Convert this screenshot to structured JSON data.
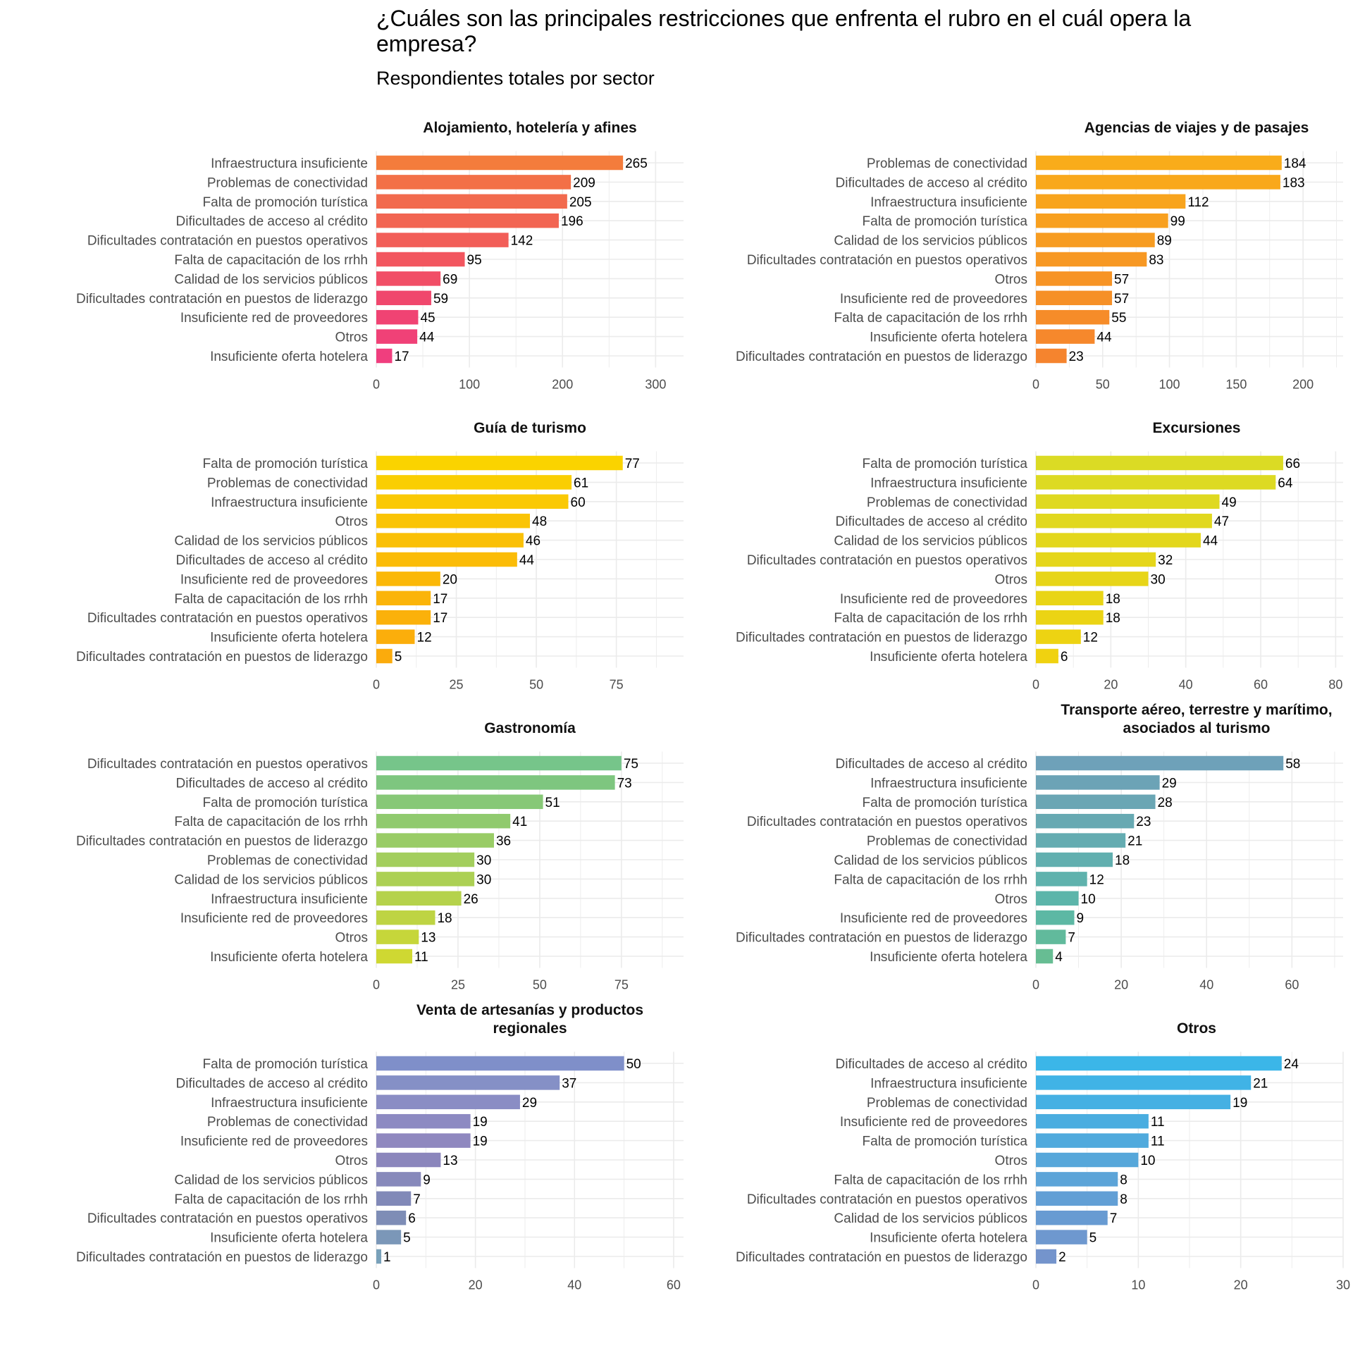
{
  "title": "¿Cuáles son las principales restricciones que enfrenta el rubro en el cuál opera la empresa?",
  "subtitle": "Respondientes totales por sector",
  "chart_data": [
    {
      "type": "bar",
      "orientation": "horizontal",
      "title": "Alojamiento, hotelería y afines",
      "categories": [
        "Infraestructura insuficiente",
        "Problemas de conectividad",
        "Falta de promoción turística",
        "Dificultades de acceso al crédito",
        "Dificultades contratación en puestos operativos",
        "Falta de capacitación de los rrhh",
        "Calidad de los servicios públicos",
        "Dificultades contratación en puestos de liderazgo",
        "Insuficiente red de proveedores",
        "Otros",
        "Insuficiente oferta hotelera"
      ],
      "values": [
        265,
        209,
        205,
        196,
        142,
        95,
        69,
        59,
        45,
        44,
        17
      ],
      "xlim": [
        0,
        330
      ],
      "ticks": [
        0,
        100,
        200,
        300
      ],
      "colors": [
        "#F47C3C",
        "#F37047",
        "#F26A4E",
        "#F26552",
        "#F25E58",
        "#F2565F",
        "#F14E66",
        "#F0476D",
        "#F04373",
        "#F04177",
        "#F03E7E"
      ]
    },
    {
      "type": "bar",
      "orientation": "horizontal",
      "title": "Agencias de viajes y de pasajes",
      "categories": [
        "Problemas de conectividad",
        "Dificultades de acceso al crédito",
        "Infraestructura insuficiente",
        "Falta de promoción turística",
        "Calidad de los servicios públicos",
        "Dificultades contratación en puestos operativos",
        "Otros",
        "Insuficiente red de proveedores",
        "Falta de capacitación de los rrhh",
        "Insuficiente oferta hotelera",
        "Dificultades contratación en puestos de liderazgo"
      ],
      "values": [
        184,
        183,
        112,
        99,
        89,
        83,
        57,
        57,
        55,
        44,
        23
      ],
      "xlim": [
        0,
        230
      ],
      "ticks": [
        0,
        50,
        100,
        150,
        200
      ],
      "colors": [
        "#F9AC1A",
        "#F9A81B",
        "#F8A41D",
        "#F8A01F",
        "#F79C21",
        "#F79823",
        "#F79425",
        "#F69027",
        "#F68C29",
        "#F6882C",
        "#F5842E"
      ]
    },
    {
      "type": "bar",
      "orientation": "horizontal",
      "title": "Guía de turismo",
      "categories": [
        "Falta de promoción turística",
        "Problemas de conectividad",
        "Infraestructura insuficiente",
        "Otros",
        "Calidad de los servicios públicos",
        "Dificultades de acceso al crédito",
        "Insuficiente red de proveedores",
        "Falta de capacitación de los rrhh",
        "Dificultades contratación en puestos operativos",
        "Insuficiente oferta hotelera",
        "Dificultades contratación en puestos de liderazgo"
      ],
      "values": [
        77,
        61,
        60,
        48,
        46,
        44,
        20,
        17,
        17,
        12,
        5
      ],
      "xlim": [
        0,
        96
      ],
      "ticks": [
        0,
        25,
        50,
        75
      ],
      "colors": [
        "#FAD300",
        "#FACE02",
        "#FAC904",
        "#FAC405",
        "#FAC006",
        "#FBBC07",
        "#FBB808",
        "#FBB409",
        "#FBB10A",
        "#FBAE0B",
        "#FBAB0C"
      ]
    },
    {
      "type": "bar",
      "orientation": "horizontal",
      "title": "Excursiones",
      "categories": [
        "Falta de promoción turística",
        "Infraestructura insuficiente",
        "Problemas de conectividad",
        "Dificultades de acceso al crédito",
        "Calidad de los servicios públicos",
        "Dificultades contratación en puestos operativos",
        "Otros",
        "Insuficiente red de proveedores",
        "Falta de capacitación de los rrhh",
        "Dificultades contratación en puestos de liderazgo",
        "Insuficiente oferta hotelera"
      ],
      "values": [
        66,
        64,
        49,
        47,
        44,
        32,
        30,
        18,
        18,
        12,
        6
      ],
      "xlim": [
        0,
        82
      ],
      "ticks": [
        0,
        20,
        40,
        60,
        80
      ],
      "colors": [
        "#DBDB24",
        "#DDDA22",
        "#DFD920",
        "#E1D81E",
        "#E3D71C",
        "#E5D61A",
        "#E7D518",
        "#E9D516",
        "#EBD414",
        "#EDD312",
        "#F0D210"
      ]
    },
    {
      "type": "bar",
      "orientation": "horizontal",
      "title": "Gastronomía",
      "categories": [
        "Dificultades contratación en puestos operativos",
        "Dificultades de acceso al crédito",
        "Falta de promoción turística",
        "Falta de capacitación de los rrhh",
        "Dificultades contratación en puestos de liderazgo",
        "Problemas de conectividad",
        "Calidad de los servicios públicos",
        "Infraestructura insuficiente",
        "Insuficiente red de proveedores",
        "Otros",
        "Insuficiente oferta hotelera"
      ],
      "values": [
        75,
        73,
        51,
        41,
        36,
        30,
        30,
        26,
        18,
        13,
        11
      ],
      "xlim": [
        0,
        94
      ],
      "ticks": [
        0,
        25,
        50,
        75
      ],
      "colors": [
        "#76C58A",
        "#7EC67F",
        "#87C877",
        "#90CA6E",
        "#99CC66",
        "#A3CE5D",
        "#ACD054",
        "#B5D24B",
        "#BED443",
        "#C6D63A",
        "#CFD832"
      ]
    },
    {
      "type": "bar",
      "orientation": "horizontal",
      "title": "Transporte aéreo, terrestre y marítimo, asociados al turismo",
      "title_lines": [
        "Transporte aéreo, terrestre y marítimo,",
        "asociados al turismo"
      ],
      "categories": [
        "Dificultades de acceso al crédito",
        "Infraestructura insuficiente",
        "Falta de promoción turística",
        "Dificultades contratación en puestos operativos",
        "Problemas de conectividad",
        "Calidad de los servicios públicos",
        "Falta de capacitación de los rrhh",
        "Otros",
        "Insuficiente red de proveedores",
        "Dificultades contratación en puestos de liderazgo",
        "Insuficiente oferta hotelera"
      ],
      "values": [
        58,
        29,
        28,
        23,
        21,
        18,
        12,
        10,
        9,
        7,
        4
      ],
      "xlim": [
        0,
        72
      ],
      "ticks": [
        0,
        20,
        40,
        60
      ],
      "colors": [
        "#6EA1B9",
        "#6CA3B6",
        "#6AA6B4",
        "#67A9B2",
        "#64ACB1",
        "#61AFAF",
        "#5FB2AD",
        "#5CB5AA",
        "#5DB8A4",
        "#61BA9C",
        "#67BD93"
      ]
    },
    {
      "type": "bar",
      "orientation": "horizontal",
      "title": "Venta de artesanías y productos regionales",
      "title_lines": [
        "Venta de artesanías y productos",
        "regionales"
      ],
      "categories": [
        "Falta de promoción turística",
        "Dificultades de acceso al crédito",
        "Infraestructura insuficiente",
        "Problemas de conectividad",
        "Insuficiente red de proveedores",
        "Otros",
        "Calidad de los servicios públicos",
        "Falta de capacitación de los rrhh",
        "Dificultades contratación en puestos operativos",
        "Insuficiente oferta hotelera",
        "Dificultades contratación en puestos de liderazgo"
      ],
      "values": [
        50,
        37,
        29,
        19,
        19,
        13,
        9,
        7,
        6,
        5,
        1
      ],
      "xlim": [
        0,
        62
      ],
      "ticks": [
        0,
        20,
        40,
        60
      ],
      "colors": [
        "#7F8FC9",
        "#8590C6",
        "#8A8DC4",
        "#8D8AC2",
        "#8F88BF",
        "#8B86BC",
        "#8789BB",
        "#8189B8",
        "#7E8DB6",
        "#7B97B8",
        "#79A1BA"
      ]
    },
    {
      "type": "bar",
      "orientation": "horizontal",
      "title": "Otros",
      "categories": [
        "Dificultades de acceso al crédito",
        "Infraestructura insuficiente",
        "Problemas de conectividad",
        "Insuficiente red de proveedores",
        "Falta de promoción turística",
        "Otros",
        "Falta de capacitación de los rrhh",
        "Dificultades contratación en puestos operativos",
        "Calidad de los servicios públicos",
        "Insuficiente oferta hotelera",
        "Dificultades contratación en puestos de liderazgo"
      ],
      "values": [
        24,
        21,
        19,
        11,
        11,
        10,
        8,
        8,
        7,
        5,
        2
      ],
      "xlim": [
        0,
        30
      ],
      "ticks": [
        0,
        10,
        20,
        30
      ],
      "colors": [
        "#3BB6E8",
        "#40B3E6",
        "#45B0E3",
        "#4AADE0",
        "#50AADD",
        "#56A7DA",
        "#5CA4D8",
        "#629FD5",
        "#689BD2",
        "#6E98CF",
        "#7494CC"
      ]
    }
  ]
}
